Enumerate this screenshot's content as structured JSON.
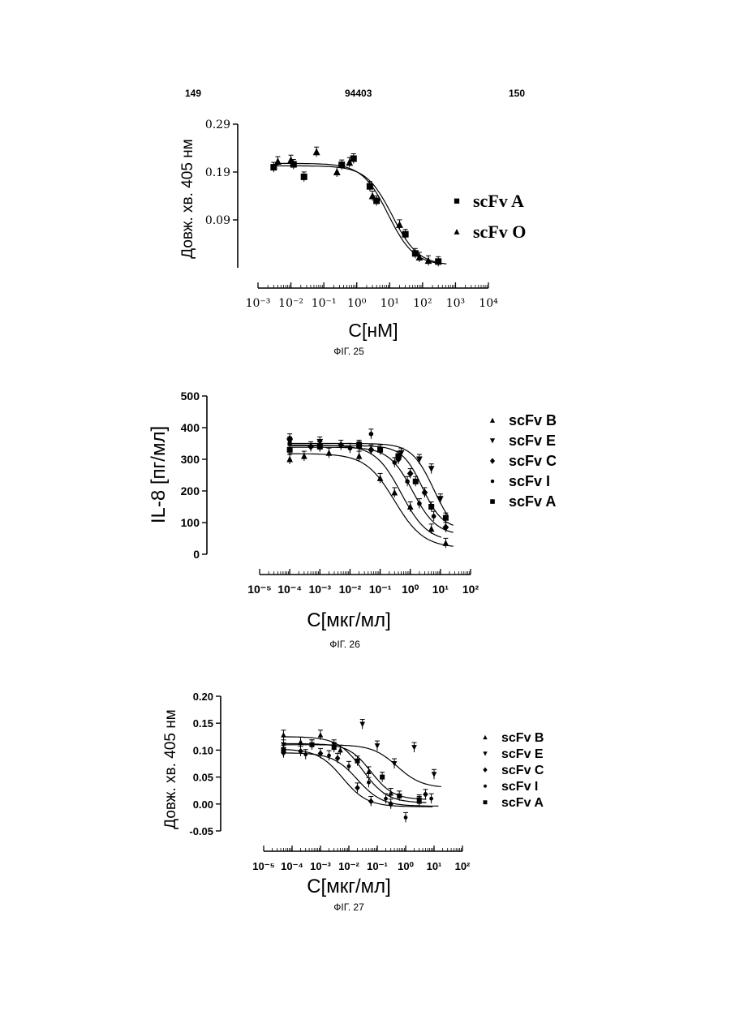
{
  "header": {
    "left_page": "149",
    "center": "94403",
    "right_page": "150"
  },
  "chart_data": [
    {
      "type": "scatter",
      "caption": "ФІГ. 25",
      "xlabel": "С[нМ]",
      "ylabel": "Довж. хв. 405 нм",
      "x_scale": "log",
      "xlim": [
        0.001,
        10000
      ],
      "ylim": [
        -0.01,
        0.29
      ],
      "y_ticks": [
        "0.29",
        "0.19",
        "0.09"
      ],
      "y_tick_values": [
        0.29,
        0.19,
        0.09
      ],
      "x_ticks": [
        "10⁻³",
        "10⁻²",
        "10⁻¹",
        "10⁰",
        "10¹",
        "10²",
        "10³",
        "10⁴"
      ],
      "x_tick_values": [
        0.001,
        0.01,
        0.1,
        1,
        10,
        100,
        1000,
        10000
      ],
      "series": [
        {
          "name": "scFv A",
          "marker": "square",
          "fit": {
            "top": 0.203,
            "bottom": -0.005,
            "ec50": 12,
            "hill": 1.1
          },
          "points": [
            [
              0.003,
              0.2
            ],
            [
              0.012,
              0.206
            ],
            [
              0.025,
              0.18
            ],
            [
              0.35,
              0.205
            ],
            [
              0.8,
              0.218
            ],
            [
              2.5,
              0.16
            ],
            [
              4,
              0.13
            ],
            [
              30,
              0.06
            ],
            [
              60,
              0.02
            ],
            [
              300,
              0.003
            ]
          ]
        },
        {
          "name": "scFv O",
          "marker": "triangle",
          "fit": {
            "top": 0.208,
            "bottom": -0.005,
            "ec50": 9,
            "hill": 1.1
          },
          "points": [
            [
              0.004,
              0.212
            ],
            [
              0.01,
              0.215
            ],
            [
              0.06,
              0.232
            ],
            [
              0.25,
              0.19
            ],
            [
              0.6,
              0.21
            ],
            [
              3,
              0.14
            ],
            [
              20,
              0.08
            ],
            [
              80,
              0.012
            ],
            [
              150,
              0.005
            ]
          ]
        }
      ]
    },
    {
      "type": "scatter",
      "caption": "ФІГ. 26",
      "xlabel": "С[мкг/мл]",
      "ylabel": "IL-8 [пг/мл]",
      "x_scale": "log",
      "xlim": [
        1e-05,
        100
      ],
      "ylim": [
        0,
        500
      ],
      "y_ticks": [
        "500",
        "400",
        "300",
        "200",
        "100",
        "0"
      ],
      "y_tick_values": [
        500,
        400,
        300,
        200,
        100,
        0
      ],
      "x_ticks": [
        "10⁻⁵",
        "10⁻⁴",
        "10⁻³",
        "10⁻²",
        "10⁻¹",
        "10⁰",
        "10¹",
        "10²"
      ],
      "x_tick_values": [
        1e-05,
        0.0001,
        0.001,
        0.01,
        0.1,
        1,
        10,
        100
      ],
      "series": [
        {
          "name": "scFv B",
          "marker": "triangle",
          "fit": {
            "top": 318,
            "bottom": 20,
            "ec50": 0.3,
            "hill": 0.9
          },
          "points": [
            [
              0.0001,
              300
            ],
            [
              0.0003,
              310
            ],
            [
              0.002,
              320
            ],
            [
              0.02,
              310
            ],
            [
              0.1,
              240
            ],
            [
              0.3,
              195
            ],
            [
              1,
              150
            ],
            [
              5,
              80
            ],
            [
              15,
              35
            ]
          ]
        },
        {
          "name": "scFv E",
          "marker": "triangle-down",
          "fit": {
            "top": 350,
            "bottom": 60,
            "ec50": 6,
            "hill": 1.2
          },
          "points": [
            [
              0.0001,
              355
            ],
            [
              0.001,
              355
            ],
            [
              0.02,
              340
            ],
            [
              0.5,
              320
            ],
            [
              2,
              300
            ],
            [
              5,
              270
            ],
            [
              10,
              175
            ]
          ]
        },
        {
          "name": "scFv C",
          "marker": "diamond",
          "fit": {
            "top": 338,
            "bottom": 60,
            "ec50": 1.2,
            "hill": 1.1
          },
          "points": [
            [
              0.0001,
              365
            ],
            [
              0.0005,
              340
            ],
            [
              0.005,
              345
            ],
            [
              0.05,
              330
            ],
            [
              0.4,
              300
            ],
            [
              1,
              255
            ],
            [
              3,
              195
            ],
            [
              15,
              85
            ]
          ]
        },
        {
          "name": "scFv I",
          "marker": "dot",
          "fit": {
            "top": 345,
            "bottom": 40,
            "ec50": 0.5,
            "hill": 1.0
          },
          "points": [
            [
              0.0001,
              350
            ],
            [
              0.001,
              340
            ],
            [
              0.01,
              335
            ],
            [
              0.05,
              380
            ],
            [
              0.3,
              290
            ],
            [
              0.8,
              230
            ],
            [
              2,
              160
            ],
            [
              6,
              120
            ]
          ]
        },
        {
          "name": "scFv A",
          "marker": "square",
          "fit": {
            "top": 343,
            "bottom": 80,
            "ec50": 2.5,
            "hill": 1.3
          },
          "points": [
            [
              0.0001,
              330
            ],
            [
              0.001,
              340
            ],
            [
              0.02,
              345
            ],
            [
              0.1,
              330
            ],
            [
              0.4,
              310
            ],
            [
              1.5,
              230
            ],
            [
              5,
              150
            ],
            [
              15,
              115
            ]
          ]
        }
      ]
    },
    {
      "type": "scatter",
      "caption": "ФІГ. 27",
      "xlabel": "С[мкг/мл]",
      "ylabel": "Довж. хв. 405 нм",
      "x_scale": "log",
      "xlim": [
        1e-05,
        100
      ],
      "ylim": [
        -0.05,
        0.2
      ],
      "y_ticks": [
        "0.20",
        "0.15",
        "0.10",
        "0.05",
        "0.00",
        "-0.05"
      ],
      "y_tick_values": [
        0.2,
        0.15,
        0.1,
        0.05,
        0.0,
        -0.05
      ],
      "x_ticks": [
        "10⁻⁵",
        "10⁻⁴",
        "10⁻³",
        "10⁻²",
        "10⁻¹",
        "10⁰",
        "10¹",
        "10²"
      ],
      "x_tick_values": [
        1e-05,
        0.0001,
        0.001,
        0.01,
        0.1,
        1,
        10,
        100
      ],
      "series": [
        {
          "name": "scFv B",
          "marker": "triangle",
          "fit": {
            "top": 0.125,
            "bottom": 0.002,
            "ec50": 0.03,
            "hill": 1.0
          },
          "points": [
            [
              5e-05,
              0.128
            ],
            [
              0.0002,
              0.115
            ],
            [
              0.001,
              0.128
            ],
            [
              0.005,
              0.1
            ],
            [
              0.05,
              0.06
            ],
            [
              0.3,
              0.02
            ],
            [
              3,
              0.005
            ]
          ]
        },
        {
          "name": "scFv E",
          "marker": "triangle-down",
          "fit": {
            "top": 0.11,
            "bottom": 0.03,
            "ec50": 0.5,
            "hill": 1.0
          },
          "points": [
            [
              5e-05,
              0.11
            ],
            [
              0.0005,
              0.11
            ],
            [
              0.003,
              0.11
            ],
            [
              0.03,
              0.148
            ],
            [
              0.1,
              0.108
            ],
            [
              0.4,
              0.075
            ],
            [
              2,
              0.105
            ],
            [
              10,
              0.055
            ]
          ]
        },
        {
          "name": "scFv C",
          "marker": "diamond",
          "fit": {
            "top": 0.102,
            "bottom": -0.005,
            "ec50": 0.006,
            "hill": 1.0
          },
          "points": [
            [
              5e-05,
              0.095
            ],
            [
              0.0002,
              0.098
            ],
            [
              0.001,
              0.094
            ],
            [
              0.004,
              0.085
            ],
            [
              0.02,
              0.03
            ],
            [
              0.06,
              0.005
            ],
            [
              0.3,
              0.0
            ],
            [
              5,
              0.018
            ]
          ]
        },
        {
          "name": "scFv I",
          "marker": "dot",
          "fit": {
            "top": 0.095,
            "bottom": -0.004,
            "ec50": 0.02,
            "hill": 1.0
          },
          "points": [
            [
              5e-05,
              0.096
            ],
            [
              0.0003,
              0.092
            ],
            [
              0.002,
              0.09
            ],
            [
              0.01,
              0.07
            ],
            [
              0.05,
              0.04
            ],
            [
              0.2,
              0.01
            ],
            [
              1,
              -0.025
            ],
            [
              8,
              0.01
            ]
          ]
        },
        {
          "name": "scFv A",
          "marker": "square",
          "fit": {
            "top": 0.112,
            "bottom": 0.008,
            "ec50": 0.06,
            "hill": 1.1
          },
          "points": [
            [
              5e-05,
              0.1
            ],
            [
              0.0005,
              0.11
            ],
            [
              0.003,
              0.105
            ],
            [
              0.02,
              0.08
            ],
            [
              0.15,
              0.05
            ],
            [
              0.6,
              0.015
            ],
            [
              3,
              0.008
            ]
          ]
        }
      ]
    }
  ]
}
